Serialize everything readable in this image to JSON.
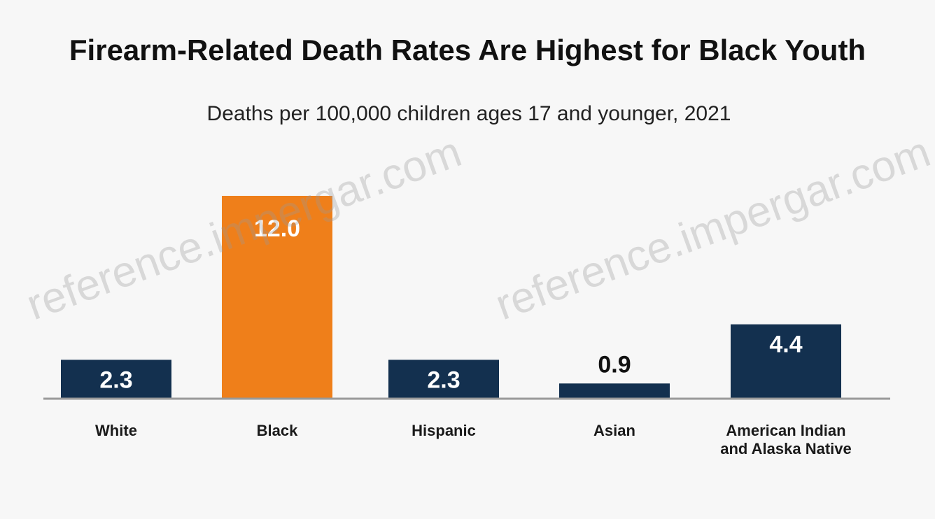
{
  "chart_data": {
    "type": "bar",
    "title": "Firearm-Related Death Rates Are Highest for Black Youth",
    "subtitle": "Deaths per 100,000 children ages 17 and younger, 2021",
    "categories": [
      [
        "White"
      ],
      [
        "Black"
      ],
      [
        "Hispanic"
      ],
      [
        "Asian"
      ],
      [
        "American Indian",
        "and Alaska Native"
      ]
    ],
    "values": [
      2.3,
      12.0,
      2.3,
      0.9,
      4.4
    ],
    "value_labels": [
      "2.3",
      "12.0",
      "2.3",
      "0.9",
      "4.4"
    ],
    "bar_colors": [
      "#13304f",
      "#ef7f1a",
      "#13304f",
      "#13304f",
      "#13304f"
    ],
    "value_label_colors": [
      "#ffffff",
      "#ffffff",
      "#ffffff",
      "#111111",
      "#ffffff"
    ],
    "ylim": [
      0,
      12.0
    ],
    "grid": false,
    "legend": "none"
  },
  "watermark": "reference.impergar.com",
  "colors": {
    "background": "#f7f7f7",
    "baseline": "#9a9a9a",
    "highlight": "#ef7f1a",
    "primary": "#13304f"
  }
}
